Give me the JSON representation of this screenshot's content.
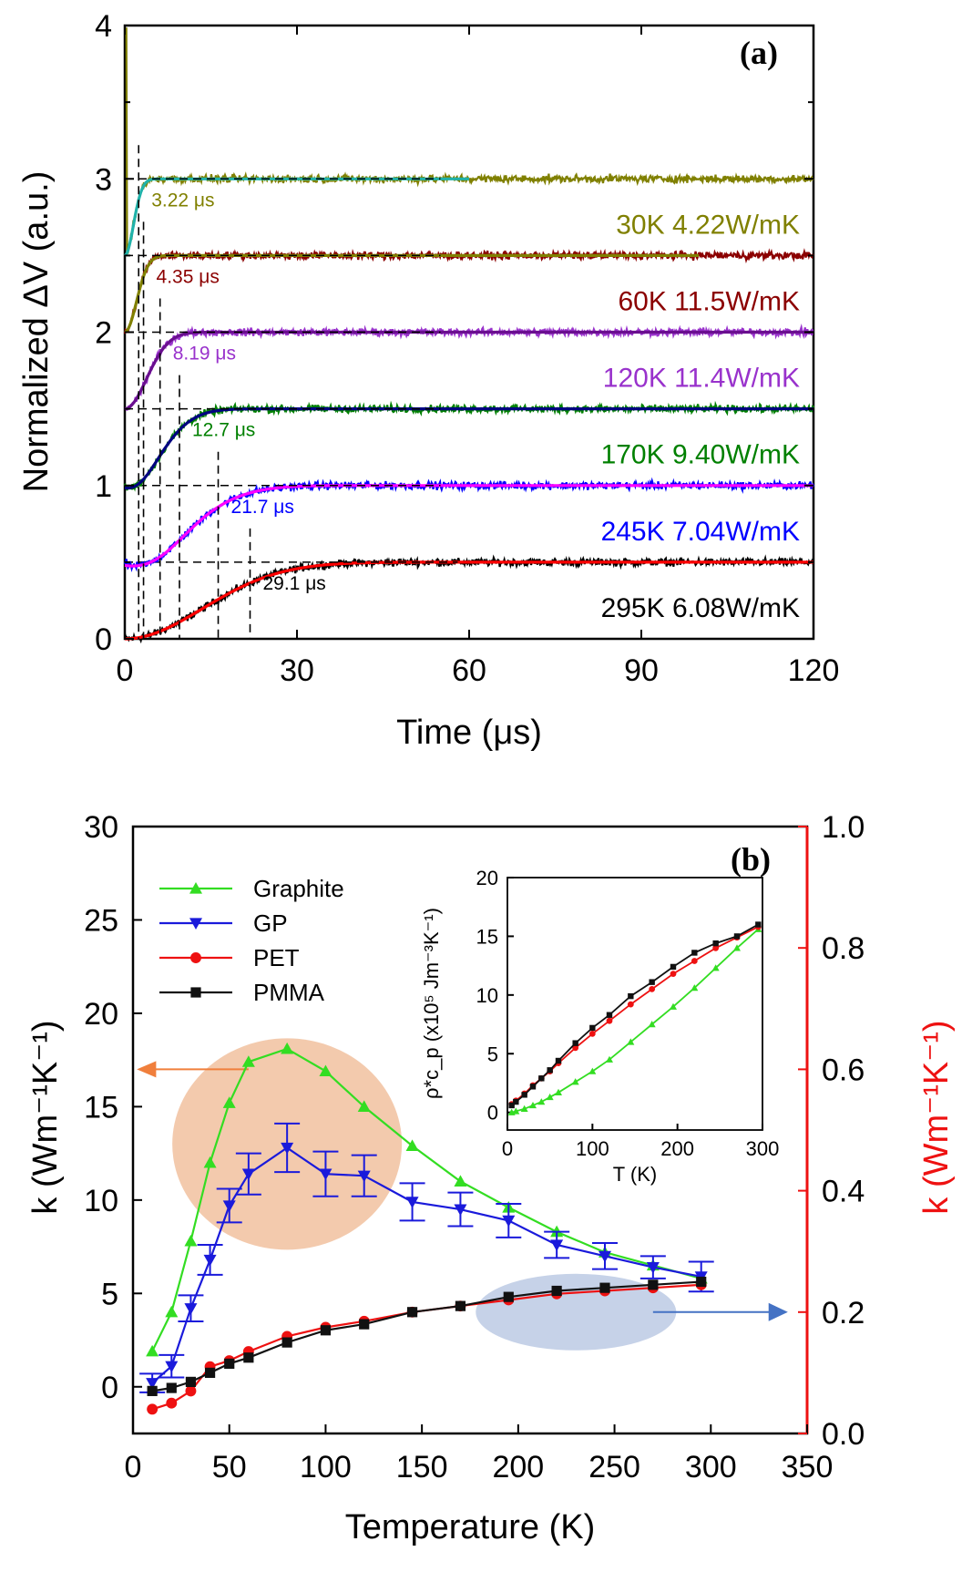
{
  "chart_data": [
    {
      "type": "line",
      "panel_label": "(a)",
      "xlabel": "Time (μs)",
      "ylabel": "Normalized ΔV (a.u.)",
      "xlim": [
        0,
        120
      ],
      "ylim": [
        0,
        4
      ],
      "xticks": [
        "0",
        "30",
        "60",
        "90",
        "120"
      ],
      "yticks": [
        "0",
        "1",
        "2",
        "3",
        "4"
      ],
      "series": [
        {
          "name": "295K 6.08W/mK",
          "temperature_K": 295,
          "k_W_mK": 6.08,
          "offset": 0.0,
          "raw_color": "#000000",
          "fit_color": "#ff0000",
          "dip": 0.0,
          "dip_time": 8,
          "char_time_us": 29.1,
          "char_label": "29.1 μs",
          "fit_end": 120
        },
        {
          "name": "245K 7.04W/mK",
          "temperature_K": 245,
          "k_W_mK": 7.04,
          "offset": 0.5,
          "raw_color": "#0000ff",
          "fit_color": "#ff00ff",
          "dip": 0.05,
          "dip_time": 6,
          "char_time_us": 21.7,
          "char_label": "21.7 μs",
          "fit_end": 120
        },
        {
          "name": "170K 9.40W/mK",
          "temperature_K": 170,
          "k_W_mK": 9.4,
          "offset": 1.0,
          "raw_color": "#008000",
          "fit_color": "#000080",
          "dip": 0.03,
          "dip_time": 3,
          "char_time_us": 12.7,
          "char_label": "12.7 μs",
          "fit_end": 120
        },
        {
          "name": "120K 11.4W/mK",
          "temperature_K": 120,
          "k_W_mK": 11.4,
          "offset": 1.5,
          "raw_color": "#9932cc",
          "fit_color": "#6a0f8f",
          "dip": 0.0,
          "dip_time": 2,
          "char_time_us": 8.19,
          "char_label": "8.19 μs",
          "fit_end": 120
        },
        {
          "name": "60K 11.5W/mK",
          "temperature_K": 60,
          "k_W_mK": 11.5,
          "offset": 2.0,
          "raw_color": "#8b0000",
          "fit_color": "#808000",
          "dip": 0.0,
          "dip_time": 1,
          "char_time_us": 4.35,
          "char_label": "4.35 μs",
          "fit_end": 100
        },
        {
          "name": "30K 4.22W/mK",
          "temperature_K": 30,
          "k_W_mK": 4.22,
          "offset": 2.5,
          "raw_color": "#808000",
          "fit_color": "#20b2aa",
          "dip": 0.0,
          "dip_time": 1,
          "char_time_us": 3.22,
          "char_label": "3.22 μs",
          "fit_end": 60
        }
      ]
    },
    {
      "type": "line",
      "panel_label": "(b)",
      "xlabel": "Temperature (K)",
      "ylabel_left": "k (Wm⁻¹K⁻¹)",
      "ylabel_right": "k (Wm⁻¹K⁻¹)",
      "xlim": [
        0,
        350
      ],
      "ylim_left": [
        -2.5,
        30
      ],
      "ylim_right": [
        0,
        1.0
      ],
      "xticks": [
        "0",
        "50",
        "100",
        "150",
        "200",
        "250",
        "300",
        "350"
      ],
      "yticks_left": [
        "0",
        "5",
        "10",
        "15",
        "20",
        "25",
        "30"
      ],
      "yticks_right": [
        "0.0",
        "0.2",
        "0.4",
        "0.6",
        "0.8",
        "1.0"
      ],
      "legend_position": "top-left",
      "series": [
        {
          "name": "Graphite",
          "axis": "left",
          "color": "#33dd22",
          "marker": "triangle-up",
          "x": [
            10,
            20,
            30,
            40,
            50,
            60,
            80,
            100,
            120,
            145,
            170,
            195,
            220,
            245,
            270,
            295
          ],
          "y": [
            1.9,
            4.0,
            7.8,
            12.0,
            15.2,
            17.4,
            18.1,
            16.9,
            15.0,
            12.9,
            11.0,
            9.6,
            8.3,
            7.2,
            6.5,
            5.8
          ]
        },
        {
          "name": "GP",
          "axis": "left",
          "color": "#1a1adb",
          "marker": "triangle-down",
          "x": [
            10,
            20,
            30,
            40,
            50,
            60,
            80,
            100,
            120,
            145,
            170,
            195,
            220,
            245,
            270,
            295
          ],
          "y": [
            0.2,
            1.1,
            4.2,
            6.8,
            9.7,
            11.4,
            12.8,
            11.4,
            11.3,
            9.9,
            9.5,
            8.9,
            7.6,
            7.0,
            6.4,
            5.9
          ],
          "yerr": [
            0.5,
            0.6,
            0.7,
            0.8,
            0.9,
            1.1,
            1.3,
            1.2,
            1.1,
            1.0,
            0.9,
            0.9,
            0.7,
            0.7,
            0.6,
            0.8
          ]
        },
        {
          "name": "PET",
          "axis": "right",
          "color": "#ee1111",
          "marker": "circle",
          "x": [
            10,
            20,
            30,
            40,
            50,
            60,
            80,
            100,
            120,
            145,
            170,
            195,
            220,
            245,
            270,
            295
          ],
          "y": [
            0.04,
            0.05,
            0.07,
            0.11,
            0.12,
            0.135,
            0.16,
            0.175,
            0.185,
            0.2,
            0.21,
            0.22,
            0.23,
            0.235,
            0.24,
            0.245
          ]
        },
        {
          "name": "PMMA",
          "axis": "right",
          "color": "#111111",
          "marker": "square",
          "x": [
            10,
            20,
            30,
            40,
            50,
            60,
            80,
            100,
            120,
            145,
            170,
            195,
            220,
            245,
            270,
            295
          ],
          "y": [
            0.07,
            0.075,
            0.085,
            0.1,
            0.115,
            0.125,
            0.15,
            0.17,
            0.18,
            0.2,
            0.21,
            0.225,
            0.235,
            0.24,
            0.245,
            0.25
          ]
        }
      ],
      "annotations": [
        {
          "kind": "ellipse",
          "color": "#f2c4a4",
          "meaning": "Graphite and GP refer to left axis",
          "arrow_color": "#f07f3c"
        },
        {
          "kind": "ellipse",
          "color": "#c0cde6",
          "meaning": "PET and PMMA refer to right axis",
          "arrow_color": "#4472c4"
        }
      ],
      "inset": {
        "xlabel": "T (K)",
        "ylabel": "ρ*c_p (x10⁵ Jm⁻³K⁻¹)",
        "xlim": [
          0,
          300
        ],
        "ylim": [
          -1.5,
          20
        ],
        "xticks": [
          "0",
          "100",
          "200",
          "300"
        ],
        "yticks": [
          "0",
          "5",
          "10",
          "15",
          "20"
        ],
        "series": [
          {
            "name": "Graphite",
            "color": "#33dd22",
            "marker": "triangle-up",
            "x": [
              5,
              10,
              20,
              30,
              40,
              50,
              60,
              80,
              100,
              120,
              145,
              170,
              195,
              220,
              245,
              270,
              295
            ],
            "y": [
              0.0,
              0.1,
              0.3,
              0.6,
              0.9,
              1.3,
              1.7,
              2.6,
              3.5,
              4.5,
              6.0,
              7.5,
              9.0,
              10.6,
              12.3,
              14.0,
              15.6
            ]
          },
          {
            "name": "PET",
            "color": "#ee1111",
            "marker": "circle",
            "x": [
              5,
              10,
              20,
              30,
              40,
              50,
              60,
              80,
              100,
              120,
              145,
              170,
              195,
              220,
              245,
              270,
              295
            ],
            "y": [
              0.7,
              1.0,
              1.6,
              2.3,
              2.9,
              3.5,
              4.2,
              5.5,
              6.7,
              7.8,
              9.2,
              10.5,
              11.8,
              12.9,
              14.0,
              14.9,
              15.8
            ]
          },
          {
            "name": "PMMA",
            "color": "#111111",
            "marker": "square",
            "x": [
              5,
              10,
              20,
              30,
              40,
              50,
              60,
              80,
              100,
              120,
              145,
              170,
              195,
              220,
              245,
              270,
              295
            ],
            "y": [
              0.6,
              0.9,
              1.5,
              2.2,
              2.9,
              3.6,
              4.4,
              5.9,
              7.2,
              8.3,
              9.9,
              11.1,
              12.4,
              13.6,
              14.4,
              15.0,
              16.0
            ]
          }
        ]
      }
    }
  ]
}
